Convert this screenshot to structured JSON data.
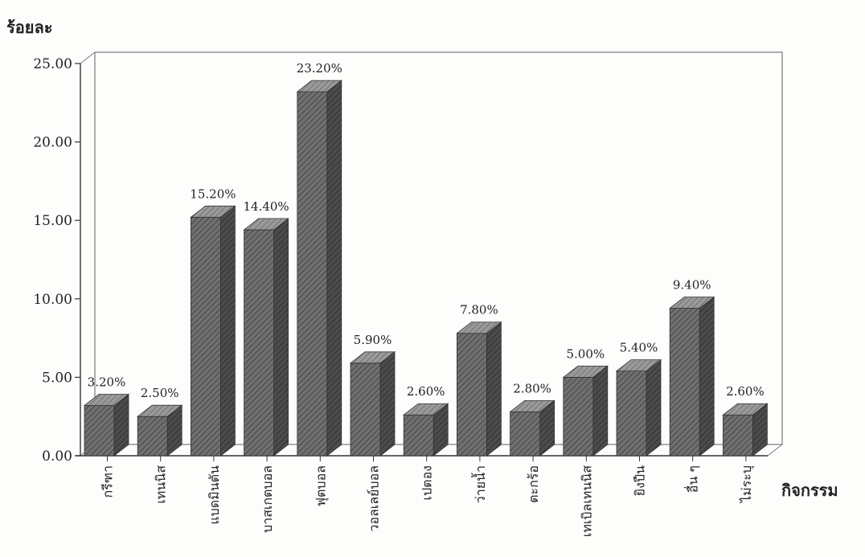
{
  "chart_data": {
    "type": "bar",
    "title": "",
    "ylabel": "ร้อยละ",
    "xlabel": "กิจกรรม",
    "ylim": [
      0,
      25
    ],
    "yticks": [
      "0.00",
      "5.00",
      "10.00",
      "15.00",
      "20.00",
      "25.00"
    ],
    "categories": [
      "กรีฑา",
      "เทนนิส",
      "แบดมินตัน",
      "บาสเกตบอล",
      "ฟุตบอล",
      "วอลเลย์บอล",
      "เปตอง",
      "ว่ายน้ำ",
      "ตะกร้อ",
      "เทเบิลเทนนิส",
      "ยิงปืน",
      "อื่น ๆ",
      "ไม่ระบุ"
    ],
    "values": [
      3.2,
      2.5,
      15.2,
      14.4,
      23.2,
      5.9,
      2.6,
      7.8,
      2.8,
      5.0,
      5.4,
      9.4,
      2.6
    ],
    "data_labels": [
      "3.20%",
      "2.50%",
      "15.20%",
      "14.40%",
      "23.20%",
      "5.90%",
      "2.60%",
      "7.80%",
      "2.80%",
      "5.00%",
      "5.40%",
      "9.40%",
      "2.60%"
    ],
    "grid": false,
    "legend": "none",
    "style": "3d-hatched-bars",
    "colors": {
      "bar_front": "#6f6f6f",
      "bar_side": "#4a4a4a",
      "bar_top": "#959595",
      "hatch": "#3a3a3a",
      "axis": "#333333",
      "frame": "#7a7a7a"
    }
  }
}
